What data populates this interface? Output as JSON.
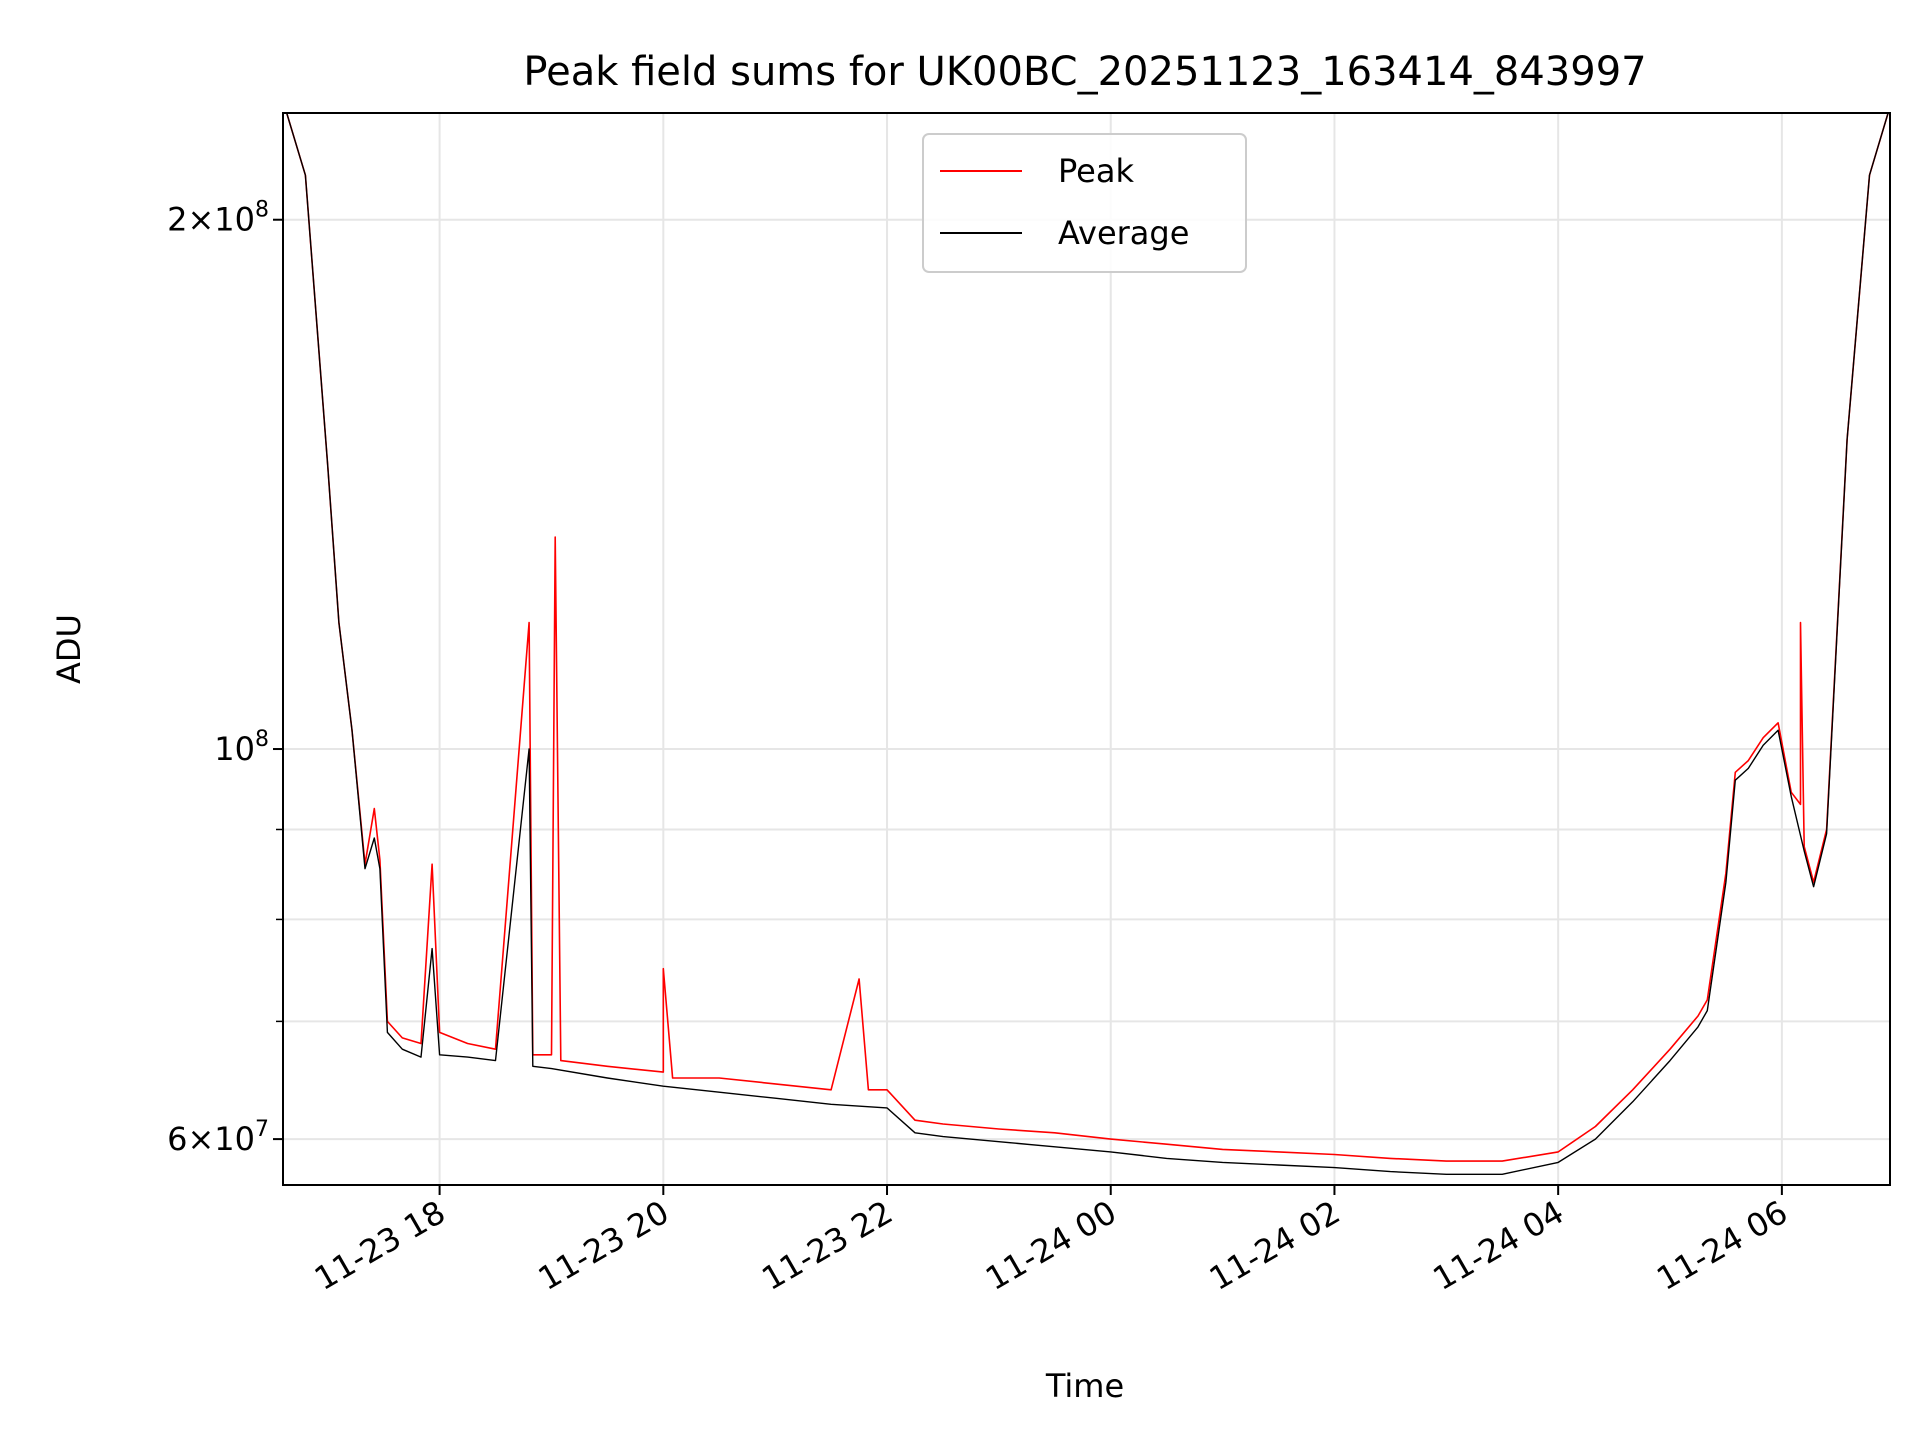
{
  "chart_data": {
    "type": "line",
    "title": "Peak field sums for UK00BC_20251123_163414_843997",
    "xlabel": "Time",
    "ylabel": "ADU",
    "yscale": "log",
    "ylim": [
      56500000,
      230000000
    ],
    "xlim": [
      "2025-11-23 16:36",
      "2025-11-24 06:58"
    ],
    "grid": true,
    "legend_position": "top-center",
    "x_tick_labels": [
      "11-23 18",
      "11-23 20",
      "11-23 22",
      "11-24 00",
      "11-24 02",
      "11-24 04",
      "11-24 06"
    ],
    "x_tick_values": [
      "2025-11-23 18:00",
      "2025-11-23 20:00",
      "2025-11-23 22:00",
      "2025-11-24 00:00",
      "2025-11-24 02:00",
      "2025-11-24 04:00",
      "2025-11-24 06:00"
    ],
    "y_tick_labels": [
      {
        "label": "6 × 10⁷",
        "base": "6×10",
        "exp": "7",
        "value": 60000000
      },
      {
        "label": "10⁸",
        "base": "10",
        "exp": "8",
        "value": 100000000
      },
      {
        "label": "2 × 10⁸",
        "base": "2×10",
        "exp": "8",
        "value": 200000000
      }
    ],
    "y_minor_grid": [
      70000000,
      80000000,
      90000000
    ],
    "series": [
      {
        "name": "Peak",
        "color": "#ff0000",
        "points": [
          [
            "2025-11-23 16:38",
            230000000
          ],
          [
            "2025-11-23 16:48",
            212000000
          ],
          [
            "2025-11-23 17:00",
            145000000
          ],
          [
            "2025-11-23 17:06",
            118000000
          ],
          [
            "2025-11-23 17:13",
            102500000
          ],
          [
            "2025-11-23 17:20",
            86000000
          ],
          [
            "2025-11-23 17:25",
            92500000
          ],
          [
            "2025-11-23 17:28",
            86500000
          ],
          [
            "2025-11-23 17:32",
            70000000
          ],
          [
            "2025-11-23 17:40",
            68500000
          ],
          [
            "2025-11-23 17:50",
            68000000
          ],
          [
            "2025-11-23 17:56",
            86000000
          ],
          [
            "2025-11-23 18:00",
            69000000
          ],
          [
            "2025-11-23 18:15",
            68000000
          ],
          [
            "2025-11-23 18:30",
            67500000
          ],
          [
            "2025-11-23 18:48",
            118000000
          ],
          [
            "2025-11-23 18:50",
            67000000
          ],
          [
            "2025-11-23 19:00",
            67000000
          ],
          [
            "2025-11-23 19:02",
            132000000
          ],
          [
            "2025-11-23 19:05",
            66500000
          ],
          [
            "2025-11-23 19:30",
            66000000
          ],
          [
            "2025-11-23 20:00",
            65500000
          ],
          [
            "2025-11-23 20:00",
            75000000
          ],
          [
            "2025-11-23 20:05",
            65000000
          ],
          [
            "2025-11-23 20:30",
            65000000
          ],
          [
            "2025-11-23 21:00",
            64500000
          ],
          [
            "2025-11-23 21:30",
            64000000
          ],
          [
            "2025-11-23 21:45",
            74000000
          ],
          [
            "2025-11-23 21:50",
            64000000
          ],
          [
            "2025-11-23 22:00",
            64000000
          ],
          [
            "2025-11-23 22:15",
            61500000
          ],
          [
            "2025-11-23 22:30",
            61200000
          ],
          [
            "2025-11-23 23:00",
            60800000
          ],
          [
            "2025-11-23 23:30",
            60500000
          ],
          [
            "2025-11-24 00:00",
            60000000
          ],
          [
            "2025-11-24 00:30",
            59600000
          ],
          [
            "2025-11-24 01:00",
            59200000
          ],
          [
            "2025-11-24 01:30",
            59000000
          ],
          [
            "2025-11-24 02:00",
            58800000
          ],
          [
            "2025-11-24 02:30",
            58500000
          ],
          [
            "2025-11-24 03:00",
            58300000
          ],
          [
            "2025-11-24 03:30",
            58300000
          ],
          [
            "2025-11-24 04:00",
            59000000
          ],
          [
            "2025-11-24 04:20",
            61000000
          ],
          [
            "2025-11-24 04:40",
            64000000
          ],
          [
            "2025-11-24 05:00",
            67500000
          ],
          [
            "2025-11-24 05:15",
            70500000
          ],
          [
            "2025-11-24 05:20",
            72000000
          ],
          [
            "2025-11-24 05:30",
            85000000
          ],
          [
            "2025-11-24 05:35",
            97000000
          ],
          [
            "2025-11-24 05:42",
            98500000
          ],
          [
            "2025-11-24 05:50",
            101500000
          ],
          [
            "2025-11-24 05:58",
            103500000
          ],
          [
            "2025-11-24 06:05",
            94500000
          ],
          [
            "2025-11-24 06:10",
            93000000
          ],
          [
            "2025-11-24 06:10",
            118000000
          ],
          [
            "2025-11-24 06:12",
            88000000
          ],
          [
            "2025-11-24 06:17",
            84000000
          ],
          [
            "2025-11-24 06:24",
            90000000
          ],
          [
            "2025-11-24 06:35",
            150000000
          ],
          [
            "2025-11-24 06:47",
            212000000
          ],
          [
            "2025-11-24 06:57",
            230000000
          ]
        ]
      },
      {
        "name": "Average",
        "color": "#000000",
        "points": [
          [
            "2025-11-23 16:38",
            230000000
          ],
          [
            "2025-11-23 16:48",
            212000000
          ],
          [
            "2025-11-23 17:00",
            145000000
          ],
          [
            "2025-11-23 17:06",
            118000000
          ],
          [
            "2025-11-23 17:13",
            102500000
          ],
          [
            "2025-11-23 17:20",
            85500000
          ],
          [
            "2025-11-23 17:25",
            89000000
          ],
          [
            "2025-11-23 17:28",
            85500000
          ],
          [
            "2025-11-23 17:32",
            69000000
          ],
          [
            "2025-11-23 17:40",
            67500000
          ],
          [
            "2025-11-23 17:50",
            66800000
          ],
          [
            "2025-11-23 17:56",
            77000000
          ],
          [
            "2025-11-23 18:00",
            67000000
          ],
          [
            "2025-11-23 18:15",
            66800000
          ],
          [
            "2025-11-23 18:30",
            66500000
          ],
          [
            "2025-11-23 18:48",
            100000000
          ],
          [
            "2025-11-23 18:50",
            66000000
          ],
          [
            "2025-11-23 19:00",
            65800000
          ],
          [
            "2025-11-23 19:30",
            65000000
          ],
          [
            "2025-11-23 20:00",
            64300000
          ],
          [
            "2025-11-23 20:30",
            63800000
          ],
          [
            "2025-11-23 21:00",
            63300000
          ],
          [
            "2025-11-23 21:30",
            62800000
          ],
          [
            "2025-11-23 22:00",
            62500000
          ],
          [
            "2025-11-23 22:15",
            60500000
          ],
          [
            "2025-11-23 22:30",
            60200000
          ],
          [
            "2025-11-23 23:00",
            59800000
          ],
          [
            "2025-11-23 23:30",
            59400000
          ],
          [
            "2025-11-24 00:00",
            59000000
          ],
          [
            "2025-11-24 00:30",
            58500000
          ],
          [
            "2025-11-24 01:00",
            58200000
          ],
          [
            "2025-11-24 01:30",
            58000000
          ],
          [
            "2025-11-24 02:00",
            57800000
          ],
          [
            "2025-11-24 02:30",
            57500000
          ],
          [
            "2025-11-24 03:00",
            57300000
          ],
          [
            "2025-11-24 03:30",
            57300000
          ],
          [
            "2025-11-24 04:00",
            58200000
          ],
          [
            "2025-11-24 04:20",
            60000000
          ],
          [
            "2025-11-24 04:40",
            63000000
          ],
          [
            "2025-11-24 05:00",
            66500000
          ],
          [
            "2025-11-24 05:15",
            69500000
          ],
          [
            "2025-11-24 05:20",
            71000000
          ],
          [
            "2025-11-24 05:30",
            84000000
          ],
          [
            "2025-11-24 05:35",
            96000000
          ],
          [
            "2025-11-24 05:42",
            97500000
          ],
          [
            "2025-11-24 05:50",
            100500000
          ],
          [
            "2025-11-24 05:58",
            102500000
          ],
          [
            "2025-11-24 06:05",
            94000000
          ],
          [
            "2025-11-24 06:12",
            87500000
          ],
          [
            "2025-11-24 06:17",
            83500000
          ],
          [
            "2025-11-24 06:24",
            89500000
          ],
          [
            "2025-11-24 06:35",
            150000000
          ],
          [
            "2025-11-24 06:47",
            212000000
          ],
          [
            "2025-11-24 06:57",
            230000000
          ]
        ]
      }
    ]
  }
}
